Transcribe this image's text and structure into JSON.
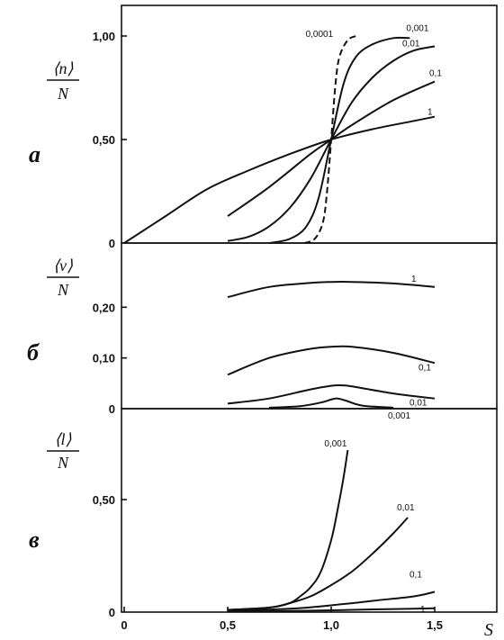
{
  "chart_data": [
    {
      "panel_label": "a",
      "type": "line",
      "ylabel": {
        "top": "⟨n⟩",
        "bottom": "N"
      },
      "xlim": [
        0,
        1.75
      ],
      "ylim": [
        0,
        1.1
      ],
      "yticks": [
        {
          "v": 0,
          "label": "0"
        },
        {
          "v": 0.5,
          "label": "0,50"
        },
        {
          "v": 1.0,
          "label": "1,00"
        }
      ],
      "series": [
        {
          "name": "0,0001",
          "dashed": true,
          "x": [
            0.87,
            0.92,
            0.96,
            0.98,
            1.0,
            1.02,
            1.04,
            1.08,
            1.12
          ],
          "y": [
            0.0,
            0.02,
            0.1,
            0.25,
            0.5,
            0.76,
            0.9,
            0.98,
            1.0
          ]
        },
        {
          "name": "0,001",
          "dashed": false,
          "x": [
            0.7,
            0.8,
            0.88,
            0.94,
            1.0,
            1.06,
            1.12,
            1.2,
            1.3,
            1.38
          ],
          "y": [
            0.0,
            0.02,
            0.08,
            0.22,
            0.5,
            0.77,
            0.9,
            0.96,
            0.99,
            0.99
          ]
        },
        {
          "name": "0,01",
          "dashed": false,
          "x": [
            0.5,
            0.6,
            0.7,
            0.8,
            0.9,
            1.0,
            1.1,
            1.2,
            1.3,
            1.4,
            1.5
          ],
          "y": [
            0.01,
            0.03,
            0.08,
            0.17,
            0.31,
            0.5,
            0.68,
            0.8,
            0.88,
            0.93,
            0.95
          ]
        },
        {
          "name": "0,1",
          "dashed": false,
          "x": [
            0.5,
            0.7,
            0.9,
            1.0,
            1.1,
            1.3,
            1.5
          ],
          "y": [
            0.13,
            0.27,
            0.43,
            0.5,
            0.57,
            0.69,
            0.78
          ]
        },
        {
          "name": "1",
          "dashed": false,
          "x": [
            0.0,
            0.2,
            0.4,
            0.6,
            0.8,
            1.0,
            1.2,
            1.4,
            1.5
          ],
          "y": [
            0.0,
            0.13,
            0.26,
            0.35,
            0.43,
            0.5,
            0.55,
            0.59,
            0.61
          ]
        }
      ]
    },
    {
      "panel_label": "б",
      "type": "line",
      "ylabel": {
        "top": "⟨ν⟩",
        "bottom": "N"
      },
      "xlim": [
        0,
        1.75
      ],
      "ylim": [
        0,
        0.3
      ],
      "yticks": [
        {
          "v": 0,
          "label": "0"
        },
        {
          "v": 0.1,
          "label": "0,10"
        },
        {
          "v": 0.2,
          "label": "0,20"
        }
      ],
      "series": [
        {
          "name": "1",
          "x": [
            0.5,
            0.7,
            0.9,
            1.0,
            1.1,
            1.3,
            1.5
          ],
          "y": [
            0.22,
            0.24,
            0.248,
            0.25,
            0.25,
            0.247,
            0.24
          ]
        },
        {
          "name": "0,1",
          "x": [
            0.5,
            0.7,
            0.9,
            1.0,
            1.1,
            1.3,
            1.5
          ],
          "y": [
            0.067,
            0.1,
            0.118,
            0.122,
            0.122,
            0.11,
            0.09
          ]
        },
        {
          "name": "0,01",
          "x": [
            0.5,
            0.7,
            0.9,
            1.0,
            1.05,
            1.1,
            1.3,
            1.5
          ],
          "y": [
            0.01,
            0.02,
            0.038,
            0.045,
            0.046,
            0.044,
            0.03,
            0.02
          ]
        },
        {
          "name": "0,001",
          "x": [
            0.7,
            0.85,
            0.95,
            1.0,
            1.03,
            1.07,
            1.15,
            1.3
          ],
          "y": [
            0.002,
            0.005,
            0.012,
            0.018,
            0.02,
            0.016,
            0.006,
            0.002
          ]
        }
      ]
    },
    {
      "panel_label": "в",
      "type": "line",
      "ylabel": {
        "top": "⟨l⟩",
        "bottom": "N"
      },
      "xlim": [
        0,
        1.75
      ],
      "ylim": [
        0,
        0.9
      ],
      "yticks": [
        {
          "v": 0,
          "label": "0"
        },
        {
          "v": 0.5,
          "label": "0,50"
        }
      ],
      "xticks": [
        {
          "v": 0,
          "label": "0"
        },
        {
          "v": 0.5,
          "label": "0,5"
        },
        {
          "v": 1.0,
          "label": "1,0"
        },
        {
          "v": 1.5,
          "label": "1,5"
        }
      ],
      "xlabel": "S",
      "series": [
        {
          "name": "0,001",
          "x": [
            0.5,
            0.7,
            0.8,
            0.85,
            0.9,
            0.95,
            1.0,
            1.03,
            1.06,
            1.08
          ],
          "y": [
            0.01,
            0.02,
            0.04,
            0.07,
            0.11,
            0.18,
            0.32,
            0.45,
            0.6,
            0.72
          ]
        },
        {
          "name": "0,01",
          "x": [
            0.5,
            0.7,
            0.8,
            0.9,
            1.0,
            1.1,
            1.2,
            1.3,
            1.37
          ],
          "y": [
            0.01,
            0.02,
            0.04,
            0.07,
            0.12,
            0.18,
            0.26,
            0.35,
            0.42
          ]
        },
        {
          "name": "0,1",
          "x": [
            0.5,
            0.8,
            1.0,
            1.2,
            1.4,
            1.5
          ],
          "y": [
            0.005,
            0.015,
            0.03,
            0.05,
            0.07,
            0.09
          ]
        },
        {
          "name": "1",
          "x": [
            0.5,
            0.8,
            1.0,
            1.2,
            1.4,
            1.5
          ],
          "y": [
            0.002,
            0.005,
            0.008,
            0.012,
            0.015,
            0.017
          ]
        }
      ]
    }
  ]
}
